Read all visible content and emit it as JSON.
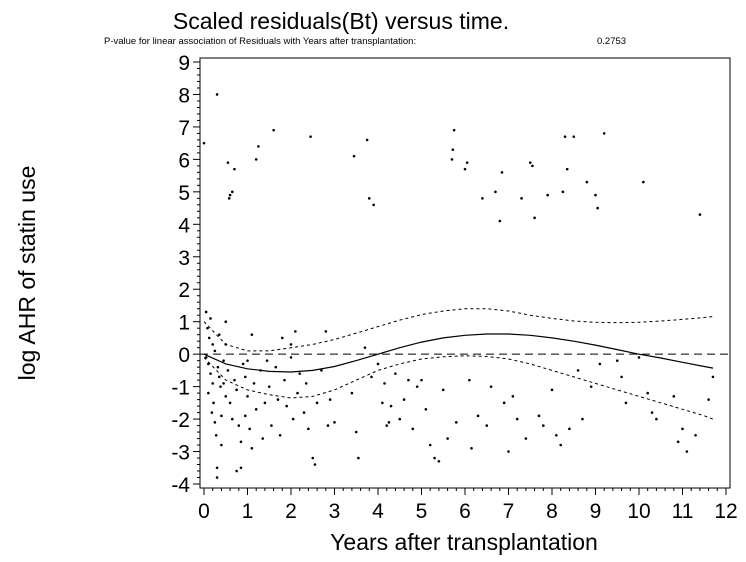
{
  "chart_data": {
    "type": "scatter",
    "title": "Scaled residuals(Bt) versus time.",
    "subtitle": "P-value for linear association of Residuals with Years after transplantation:",
    "p_value": "0.2753",
    "xlabel": "Years after transplantation",
    "ylabel": "log AHR of statin use",
    "xlim": [
      0,
      12
    ],
    "ylim": [
      -4,
      9
    ],
    "xticks": [
      "0",
      "1",
      "2",
      "3",
      "4",
      "5",
      "6",
      "7",
      "8",
      "9",
      "10",
      "11",
      "12"
    ],
    "yticks": [
      "-4",
      "-3",
      "-2",
      "-1",
      "0",
      "1",
      "2",
      "3",
      "4",
      "5",
      "6",
      "7",
      "8",
      "9"
    ],
    "grid": false,
    "reference_line": 0,
    "smooth_fit": [
      [
        0,
        0.0
      ],
      [
        0.5,
        -0.3
      ],
      [
        1,
        -0.45
      ],
      [
        1.5,
        -0.53
      ],
      [
        2,
        -0.55
      ],
      [
        2.5,
        -0.5
      ],
      [
        3,
        -0.38
      ],
      [
        3.5,
        -0.2
      ],
      [
        4,
        0.0
      ],
      [
        4.5,
        0.2
      ],
      [
        5,
        0.37
      ],
      [
        5.5,
        0.5
      ],
      [
        6,
        0.58
      ],
      [
        6.5,
        0.62
      ],
      [
        7,
        0.62
      ],
      [
        7.5,
        0.58
      ],
      [
        8,
        0.5
      ],
      [
        8.5,
        0.4
      ],
      [
        9,
        0.28
      ],
      [
        9.5,
        0.14
      ],
      [
        10,
        0.0
      ],
      [
        10.5,
        -0.12
      ],
      [
        11,
        -0.25
      ],
      [
        11.5,
        -0.38
      ],
      [
        11.7,
        -0.43
      ]
    ],
    "upper_band": [
      [
        0,
        1.0
      ],
      [
        0.5,
        0.3
      ],
      [
        1,
        0.1
      ],
      [
        1.5,
        0.1
      ],
      [
        2,
        0.2
      ],
      [
        2.5,
        0.3
      ],
      [
        3,
        0.45
      ],
      [
        3.5,
        0.65
      ],
      [
        4,
        0.85
      ],
      [
        4.5,
        1.05
      ],
      [
        5,
        1.22
      ],
      [
        5.5,
        1.33
      ],
      [
        6,
        1.4
      ],
      [
        6.5,
        1.4
      ],
      [
        7,
        1.33
      ],
      [
        7.5,
        1.2
      ],
      [
        8,
        1.1
      ],
      [
        8.5,
        1.02
      ],
      [
        9,
        0.98
      ],
      [
        9.5,
        0.97
      ],
      [
        10,
        0.98
      ],
      [
        10.5,
        1.02
      ],
      [
        11,
        1.07
      ],
      [
        11.5,
        1.13
      ],
      [
        11.7,
        1.16
      ]
    ],
    "lower_band": [
      [
        0,
        -0.1
      ],
      [
        0.5,
        -0.8
      ],
      [
        1,
        -1.1
      ],
      [
        1.5,
        -1.25
      ],
      [
        2,
        -1.35
      ],
      [
        2.5,
        -1.3
      ],
      [
        3,
        -1.1
      ],
      [
        3.5,
        -0.8
      ],
      [
        4,
        -0.5
      ],
      [
        4.5,
        -0.3
      ],
      [
        5,
        -0.15
      ],
      [
        5.5,
        -0.08
      ],
      [
        6,
        -0.05
      ],
      [
        6.5,
        -0.07
      ],
      [
        7,
        -0.15
      ],
      [
        7.5,
        -0.3
      ],
      [
        8,
        -0.5
      ],
      [
        8.5,
        -0.7
      ],
      [
        9,
        -0.9
      ],
      [
        9.5,
        -1.1
      ],
      [
        10,
        -1.3
      ],
      [
        10.5,
        -1.5
      ],
      [
        11,
        -1.7
      ],
      [
        11.5,
        -1.9
      ],
      [
        11.7,
        -2.0
      ]
    ],
    "points": [
      [
        0.0,
        6.5
      ],
      [
        0.05,
        1.3
      ],
      [
        0.05,
        -0.1
      ],
      [
        0.08,
        0.8
      ],
      [
        0.1,
        -0.3
      ],
      [
        0.1,
        -1.2
      ],
      [
        0.12,
        0.5
      ],
      [
        0.15,
        -0.6
      ],
      [
        0.15,
        1.1
      ],
      [
        0.18,
        -1.8
      ],
      [
        0.2,
        0.3
      ],
      [
        0.2,
        -0.9
      ],
      [
        0.22,
        -1.5
      ],
      [
        0.25,
        -2.1
      ],
      [
        0.25,
        0.1
      ],
      [
        0.28,
        -2.5
      ],
      [
        0.3,
        -3.5
      ],
      [
        0.3,
        -3.8
      ],
      [
        0.3,
        8.0
      ],
      [
        0.32,
        -0.4
      ],
      [
        0.35,
        -0.7
      ],
      [
        0.35,
        0.6
      ],
      [
        0.38,
        -1.0
      ],
      [
        0.4,
        -1.9
      ],
      [
        0.4,
        -2.8
      ],
      [
        0.45,
        -0.2
      ],
      [
        0.45,
        -0.9
      ],
      [
        0.5,
        0.3
      ],
      [
        0.5,
        -1.3
      ],
      [
        0.5,
        1.0
      ],
      [
        0.55,
        -0.5
      ],
      [
        0.55,
        5.9
      ],
      [
        0.58,
        4.8
      ],
      [
        0.6,
        4.9
      ],
      [
        0.6,
        -1.5
      ],
      [
        0.65,
        5.0
      ],
      [
        0.65,
        -2.0
      ],
      [
        0.7,
        -0.8
      ],
      [
        0.7,
        5.7
      ],
      [
        0.75,
        -1.1
      ],
      [
        0.75,
        -3.6
      ],
      [
        0.8,
        -2.2
      ],
      [
        0.85,
        -2.7
      ],
      [
        0.85,
        -3.5
      ],
      [
        0.9,
        -0.3
      ],
      [
        0.95,
        -0.7
      ],
      [
        0.95,
        -1.9
      ],
      [
        1.0,
        -0.2
      ],
      [
        1.0,
        -1.3
      ],
      [
        1.05,
        -2.3
      ],
      [
        1.1,
        0.6
      ],
      [
        1.1,
        -2.9
      ],
      [
        1.15,
        -0.9
      ],
      [
        1.2,
        -1.7
      ],
      [
        1.2,
        6.0
      ],
      [
        1.25,
        6.4
      ],
      [
        1.3,
        -0.5
      ],
      [
        1.35,
        -2.6
      ],
      [
        1.4,
        -1.5
      ],
      [
        1.45,
        -0.2
      ],
      [
        1.5,
        -1.0
      ],
      [
        1.55,
        -2.2
      ],
      [
        1.6,
        6.9
      ],
      [
        1.65,
        -0.4
      ],
      [
        1.7,
        -1.4
      ],
      [
        1.75,
        -2.5
      ],
      [
        1.8,
        0.5
      ],
      [
        1.85,
        -0.8
      ],
      [
        1.9,
        -1.6
      ],
      [
        2.0,
        -0.1
      ],
      [
        2.0,
        0.3
      ],
      [
        2.05,
        -2.0
      ],
      [
        2.1,
        0.7
      ],
      [
        2.15,
        -1.2
      ],
      [
        2.2,
        -0.6
      ],
      [
        2.3,
        -1.8
      ],
      [
        2.35,
        -0.9
      ],
      [
        2.4,
        -2.3
      ],
      [
        2.45,
        6.7
      ],
      [
        2.5,
        -3.2
      ],
      [
        2.55,
        -3.4
      ],
      [
        2.6,
        -1.5
      ],
      [
        2.7,
        -0.5
      ],
      [
        2.8,
        0.7
      ],
      [
        2.85,
        -2.2
      ],
      [
        2.9,
        -1.4
      ],
      [
        3.0,
        -2.1
      ],
      [
        3.4,
        -1.2
      ],
      [
        3.45,
        6.1
      ],
      [
        3.5,
        -2.4
      ],
      [
        3.55,
        -3.2
      ],
      [
        3.7,
        0.2
      ],
      [
        3.75,
        6.6
      ],
      [
        3.8,
        4.8
      ],
      [
        3.85,
        -0.7
      ],
      [
        3.9,
        4.6
      ],
      [
        4.0,
        -0.3
      ],
      [
        4.1,
        -1.5
      ],
      [
        4.15,
        -0.9
      ],
      [
        4.2,
        -2.2
      ],
      [
        4.25,
        -2.1
      ],
      [
        4.3,
        -1.6
      ],
      [
        4.4,
        -0.6
      ],
      [
        4.5,
        -2.0
      ],
      [
        4.6,
        -1.4
      ],
      [
        4.7,
        -0.8
      ],
      [
        4.8,
        -2.3
      ],
      [
        4.9,
        -1.0
      ],
      [
        5.0,
        -0.8
      ],
      [
        5.1,
        -1.7
      ],
      [
        5.2,
        -2.8
      ],
      [
        5.3,
        -3.2
      ],
      [
        5.4,
        -3.3
      ],
      [
        5.5,
        -1.1
      ],
      [
        5.6,
        -2.6
      ],
      [
        5.7,
        6.0
      ],
      [
        5.72,
        6.3
      ],
      [
        5.75,
        6.9
      ],
      [
        5.8,
        -2.1
      ],
      [
        6.0,
        5.7
      ],
      [
        6.05,
        5.9
      ],
      [
        6.1,
        -0.8
      ],
      [
        6.15,
        -2.9
      ],
      [
        6.3,
        -1.9
      ],
      [
        6.4,
        4.8
      ],
      [
        6.5,
        -2.2
      ],
      [
        6.6,
        -1.0
      ],
      [
        6.7,
        5.0
      ],
      [
        6.8,
        4.1
      ],
      [
        6.85,
        5.6
      ],
      [
        6.9,
        -1.5
      ],
      [
        7.0,
        -3.0
      ],
      [
        7.1,
        -1.3
      ],
      [
        7.2,
        -2.0
      ],
      [
        7.3,
        4.8
      ],
      [
        7.4,
        -2.6
      ],
      [
        7.5,
        5.9
      ],
      [
        7.55,
        5.8
      ],
      [
        7.6,
        4.2
      ],
      [
        7.7,
        -1.9
      ],
      [
        7.8,
        -2.2
      ],
      [
        7.9,
        4.9
      ],
      [
        8.0,
        -1.1
      ],
      [
        8.1,
        -2.5
      ],
      [
        8.2,
        -2.8
      ],
      [
        8.25,
        5.0
      ],
      [
        8.3,
        6.7
      ],
      [
        8.35,
        5.7
      ],
      [
        8.4,
        -2.3
      ],
      [
        8.5,
        6.7
      ],
      [
        8.6,
        -0.5
      ],
      [
        8.7,
        -2.0
      ],
      [
        8.8,
        5.3
      ],
      [
        8.9,
        -1.0
      ],
      [
        9.0,
        4.9
      ],
      [
        9.05,
        4.5
      ],
      [
        9.1,
        -0.3
      ],
      [
        9.2,
        6.8
      ],
      [
        9.5,
        -0.2
      ],
      [
        9.6,
        -0.7
      ],
      [
        9.7,
        -1.5
      ],
      [
        10.0,
        -0.1
      ],
      [
        10.1,
        5.3
      ],
      [
        10.2,
        -1.2
      ],
      [
        10.3,
        -1.8
      ],
      [
        10.4,
        -2.0
      ],
      [
        10.8,
        -1.3
      ],
      [
        10.9,
        -2.7
      ],
      [
        11.0,
        -2.3
      ],
      [
        11.1,
        -3.0
      ],
      [
        11.3,
        -2.5
      ],
      [
        11.4,
        4.3
      ],
      [
        11.6,
        -1.4
      ],
      [
        11.7,
        -0.7
      ]
    ]
  }
}
